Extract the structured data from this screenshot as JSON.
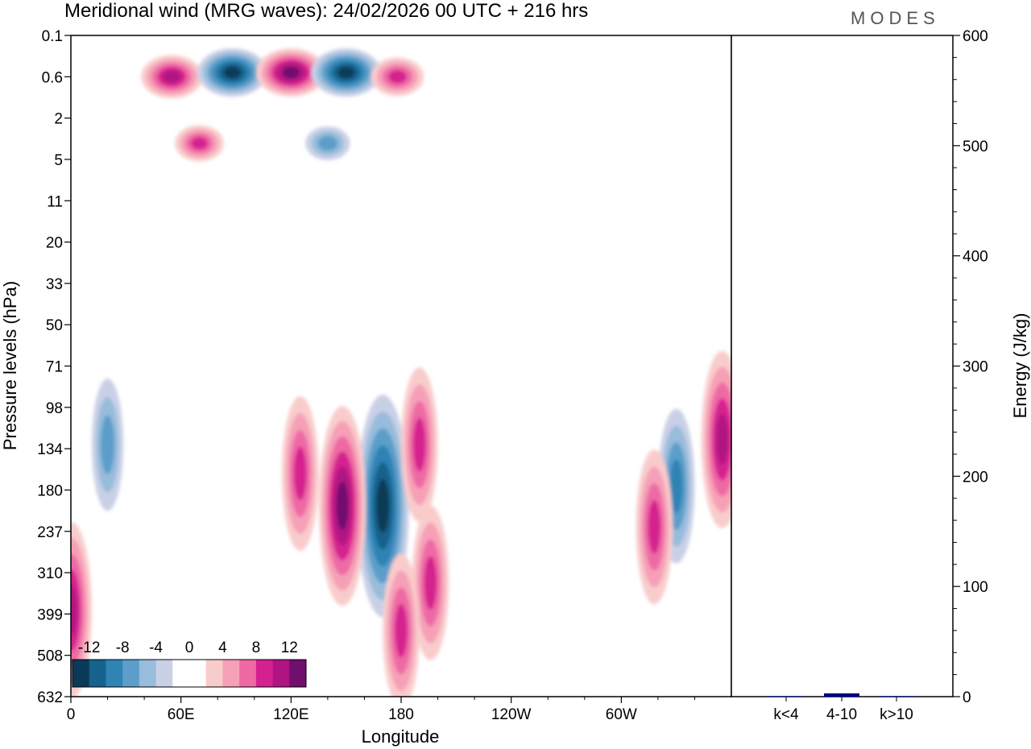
{
  "header": {
    "title": "Meridional wind (MRG waves):  24/02/2026  00 UTC  + 216 hrs",
    "logo": "MODES"
  },
  "chart_data": [
    {
      "type": "heatmap",
      "title": "Meridional wind (MRG waves)",
      "xlabel": "Longitude",
      "ylabel": "Pressure levels (hPa)",
      "x_ticks": [
        "0",
        "60E",
        "120E",
        "180",
        "120W",
        "60W"
      ],
      "y_ticks": [
        "0.1",
        "0.6",
        "2",
        "5",
        "11",
        "20",
        "33",
        "50",
        "71",
        "98",
        "134",
        "180",
        "237",
        "310",
        "399",
        "508",
        "632"
      ],
      "colorbar": {
        "labels": [
          "-12",
          "-8",
          "-4",
          "0",
          "4",
          "8",
          "12"
        ],
        "colors": [
          "#0a3a57",
          "#17628c",
          "#2f83b5",
          "#5c9ec9",
          "#98bcdb",
          "#c9d0e6",
          "#ffffff",
          "#ffffff",
          "#f9cccc",
          "#f6a0b8",
          "#ee6aa4",
          "#d6208f",
          "#b01382",
          "#6f0f6e"
        ]
      },
      "features": [
        {
          "lon": 55,
          "level": 0.6,
          "value": 10
        },
        {
          "lon": 88,
          "level": 0.5,
          "value": -12
        },
        {
          "lon": 120,
          "level": 0.5,
          "value": 12
        },
        {
          "lon": 150,
          "level": 0.5,
          "value": -12
        },
        {
          "lon": 178,
          "level": 0.6,
          "value": 8
        },
        {
          "lon": 140,
          "level": 3.5,
          "value": -6
        },
        {
          "lon": 70,
          "level": 3.5,
          "value": 7
        },
        {
          "lon": 170,
          "level": 200,
          "value": -14
        },
        {
          "lon": 148,
          "level": 200,
          "value": 12
        },
        {
          "lon": 125,
          "level": 160,
          "value": 8
        },
        {
          "lon": 190,
          "level": 130,
          "value": 8
        },
        {
          "lon": 196,
          "level": 330,
          "value": 8
        },
        {
          "lon": 180,
          "level": 440,
          "value": 8
        },
        {
          "lon": 330,
          "level": 175,
          "value": -8
        },
        {
          "lon": 318,
          "level": 230,
          "value": 8
        },
        {
          "lon": 355,
          "level": 125,
          "value": 10
        },
        {
          "lon": 20,
          "level": 130,
          "value": -6
        },
        {
          "lon": 0,
          "level": 390,
          "value": 10
        }
      ]
    },
    {
      "type": "bar",
      "categories": [
        "k<4",
        "4-10",
        "k>10"
      ],
      "values": [
        0.5,
        3,
        0.5
      ],
      "ylabel": "Energy (J/kg)",
      "ylim": [
        0,
        600
      ],
      "y_ticks": [
        "0",
        "100",
        "200",
        "300",
        "400",
        "500",
        "600"
      ],
      "bar_color": "#00008b"
    }
  ]
}
